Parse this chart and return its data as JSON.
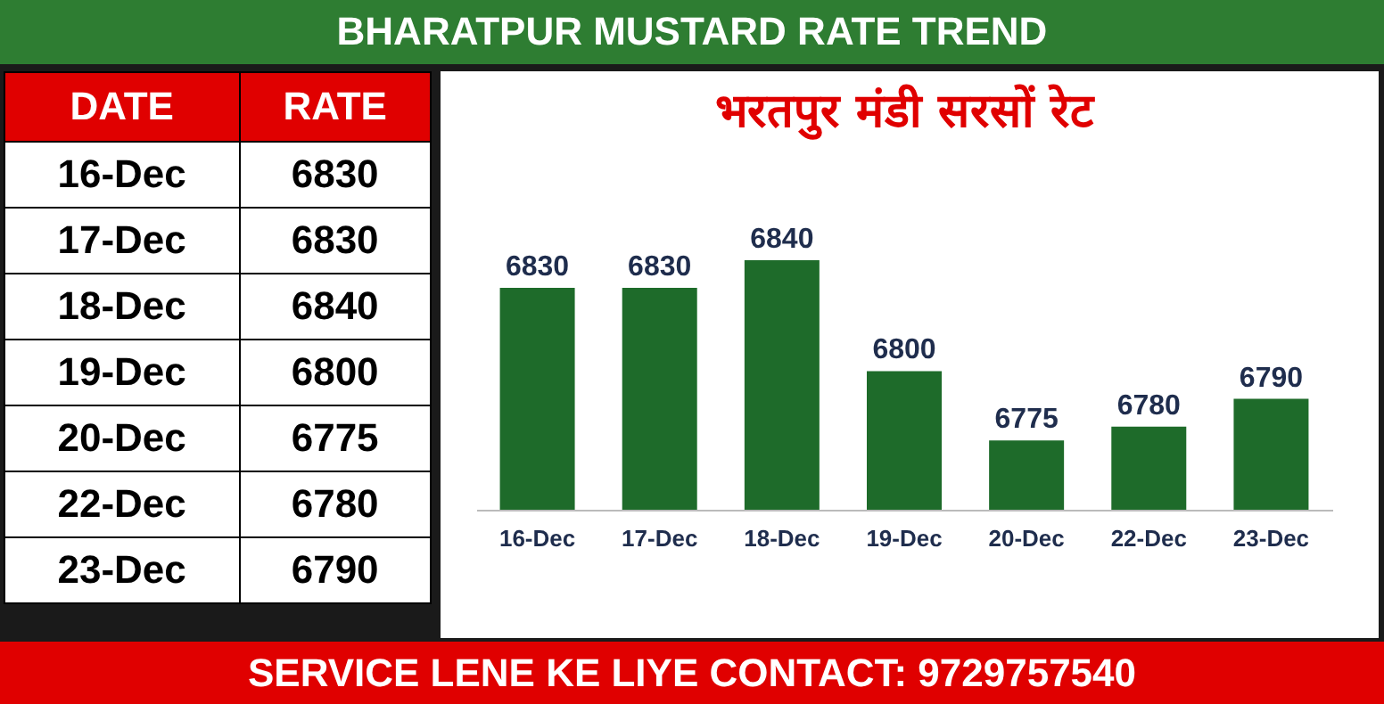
{
  "chart_data": [
    {
      "type": "other",
      "subtitle": "BHARATPUR MUSTARD RATE TREND",
      "annotations": [
        "DATE",
        "RATE"
      ],
      "categories": [
        "16-Dec",
        "17-Dec",
        "18-Dec",
        "19-Dec",
        "20-Dec",
        "22-Dec",
        "23-Dec"
      ],
      "values": [
        6830,
        6830,
        6840,
        6800,
        6775,
        6780,
        6790
      ],
      "data_labels": true
    },
    {
      "type": "bar",
      "title": "भरतपुर मंडी सरसों रेट",
      "categories": [
        "16-Dec",
        "17-Dec",
        "18-Dec",
        "19-Dec",
        "20-Dec",
        "22-Dec",
        "23-Dec"
      ],
      "values": [
        6830,
        6830,
        6840,
        6800,
        6775,
        6780,
        6790
      ],
      "color": "#1e6b2a",
      "ylim": [
        6750,
        6840
      ],
      "data_labels": true,
      "annotations": [
        "SERVICE LENE KE LIYE CONTACT: 9729757540"
      ]
    }
  ]
}
